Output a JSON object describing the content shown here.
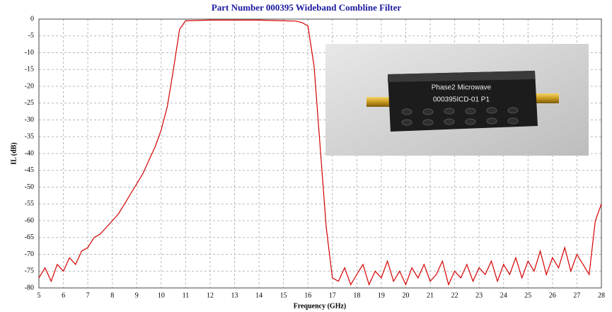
{
  "chart_data": {
    "type": "line",
    "title": "Part Number 000395  Wideband Combline Filter",
    "x_label": "Frequency (GHz)",
    "y_label": "IL (dB)",
    "annotations": [
      "Phase2 Microwave",
      "000395ICD-01 P1"
    ],
    "xlim": [
      5,
      28
    ],
    "xticks": [
      5,
      6,
      7,
      8,
      9,
      10,
      11,
      12,
      13,
      14,
      15,
      16,
      17,
      18,
      19,
      20,
      21,
      22,
      23,
      24,
      25,
      26,
      27,
      28
    ],
    "ylim": [
      -80,
      0
    ],
    "yticks": [
      0,
      -5,
      -10,
      -15,
      -20,
      -25,
      -30,
      -35,
      -40,
      -45,
      -50,
      -55,
      -60,
      -65,
      -70,
      -75,
      -80
    ],
    "grid": true,
    "x": [
      5,
      5.25,
      5.5,
      5.75,
      6,
      6.25,
      6.5,
      6.75,
      7,
      7.25,
      7.5,
      7.75,
      8,
      8.25,
      8.5,
      8.75,
      9,
      9.25,
      9.5,
      9.75,
      10,
      10.25,
      10.5,
      10.75,
      11,
      11.5,
      12,
      12.5,
      13,
      13.5,
      14,
      14.5,
      15,
      15.5,
      15.75,
      16,
      16.25,
      16.5,
      16.75,
      17,
      17.25,
      17.5,
      17.75,
      18,
      18.25,
      18.5,
      18.75,
      19,
      19.25,
      19.5,
      19.75,
      20,
      20.25,
      20.5,
      20.75,
      21,
      21.25,
      21.5,
      21.75,
      22,
      22.25,
      22.5,
      22.75,
      23,
      23.25,
      23.5,
      23.75,
      24,
      24.25,
      24.5,
      24.75,
      25,
      25.25,
      25.5,
      25.75,
      26,
      26.25,
      26.5,
      26.75,
      27,
      27.25,
      27.5,
      27.75,
      28
    ],
    "series": [
      {
        "name": "IL",
        "color": "#d40000",
        "values": [
          -77,
          -74,
          -78,
          -73,
          -75,
          -71,
          -73,
          -69,
          -68,
          -65,
          -64,
          -62,
          -60,
          -58,
          -55,
          -52,
          -49,
          -46,
          -42,
          -38,
          -33,
          -26,
          -15,
          -3,
          -0.5,
          -0.4,
          -0.3,
          -0.3,
          -0.3,
          -0.3,
          -0.3,
          -0.4,
          -0.5,
          -0.6,
          -1,
          -2,
          -14,
          -38,
          -62,
          -77,
          -78,
          -74,
          -79,
          -76,
          -73,
          -79,
          -75,
          -77,
          -72,
          -78,
          -75,
          -79,
          -74,
          -77,
          -73,
          -78,
          -76,
          -72,
          -79,
          -75,
          -77,
          -73,
          -78,
          -74,
          -76,
          -72,
          -78,
          -73,
          -76,
          -71,
          -77,
          -72,
          -75,
          -69,
          -76,
          -71,
          -74,
          -68,
          -75,
          -70,
          -73,
          -76,
          -60,
          -55
        ]
      }
    ]
  }
}
